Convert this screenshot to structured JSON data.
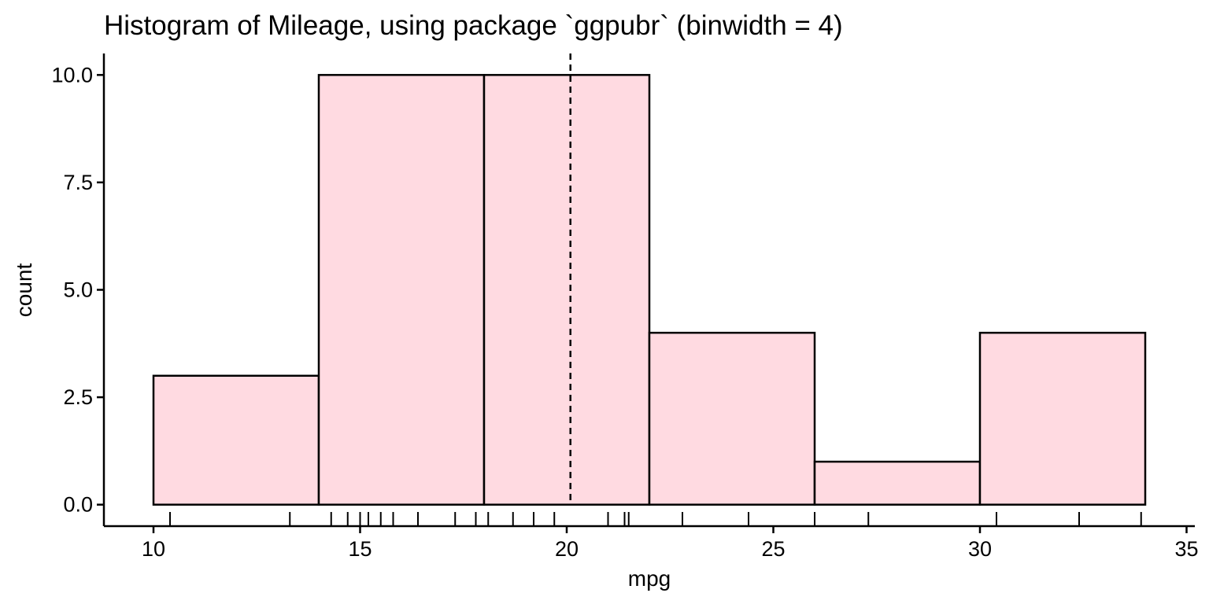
{
  "chart_data": {
    "type": "bar",
    "title": "Histogram of Mileage, using package `ggpubr` (binwidth = 4)",
    "xlabel": "mpg",
    "ylabel": "count",
    "bin_edges": [
      10,
      14,
      18,
      22,
      26,
      30,
      34
    ],
    "values": [
      3,
      10,
      10,
      4,
      1,
      4
    ],
    "xlim": [
      8.8,
      35.2
    ],
    "ylim": [
      -0.5,
      10.5
    ],
    "x_ticks": [
      10,
      15,
      20,
      25,
      30,
      35
    ],
    "x_tick_labels": [
      "10",
      "15",
      "20",
      "25",
      "30",
      "35"
    ],
    "y_ticks": [
      0,
      2.5,
      5,
      7.5,
      10
    ],
    "y_tick_labels": [
      "0.0",
      "2.5",
      "5.0",
      "7.5",
      "10.0"
    ],
    "mean_line": 20.09,
    "rug": [
      10.4,
      13.3,
      14.3,
      14.7,
      15.0,
      15.2,
      15.5,
      15.8,
      16.4,
      17.3,
      17.8,
      18.1,
      18.7,
      19.2,
      19.7,
      21.0,
      21.4,
      21.5,
      22.8,
      24.4,
      26.0,
      27.3,
      30.4,
      32.4,
      33.9
    ],
    "fill_color": "#FFDAE1",
    "stroke_color": "#000000",
    "grid": false,
    "legend": "none"
  }
}
